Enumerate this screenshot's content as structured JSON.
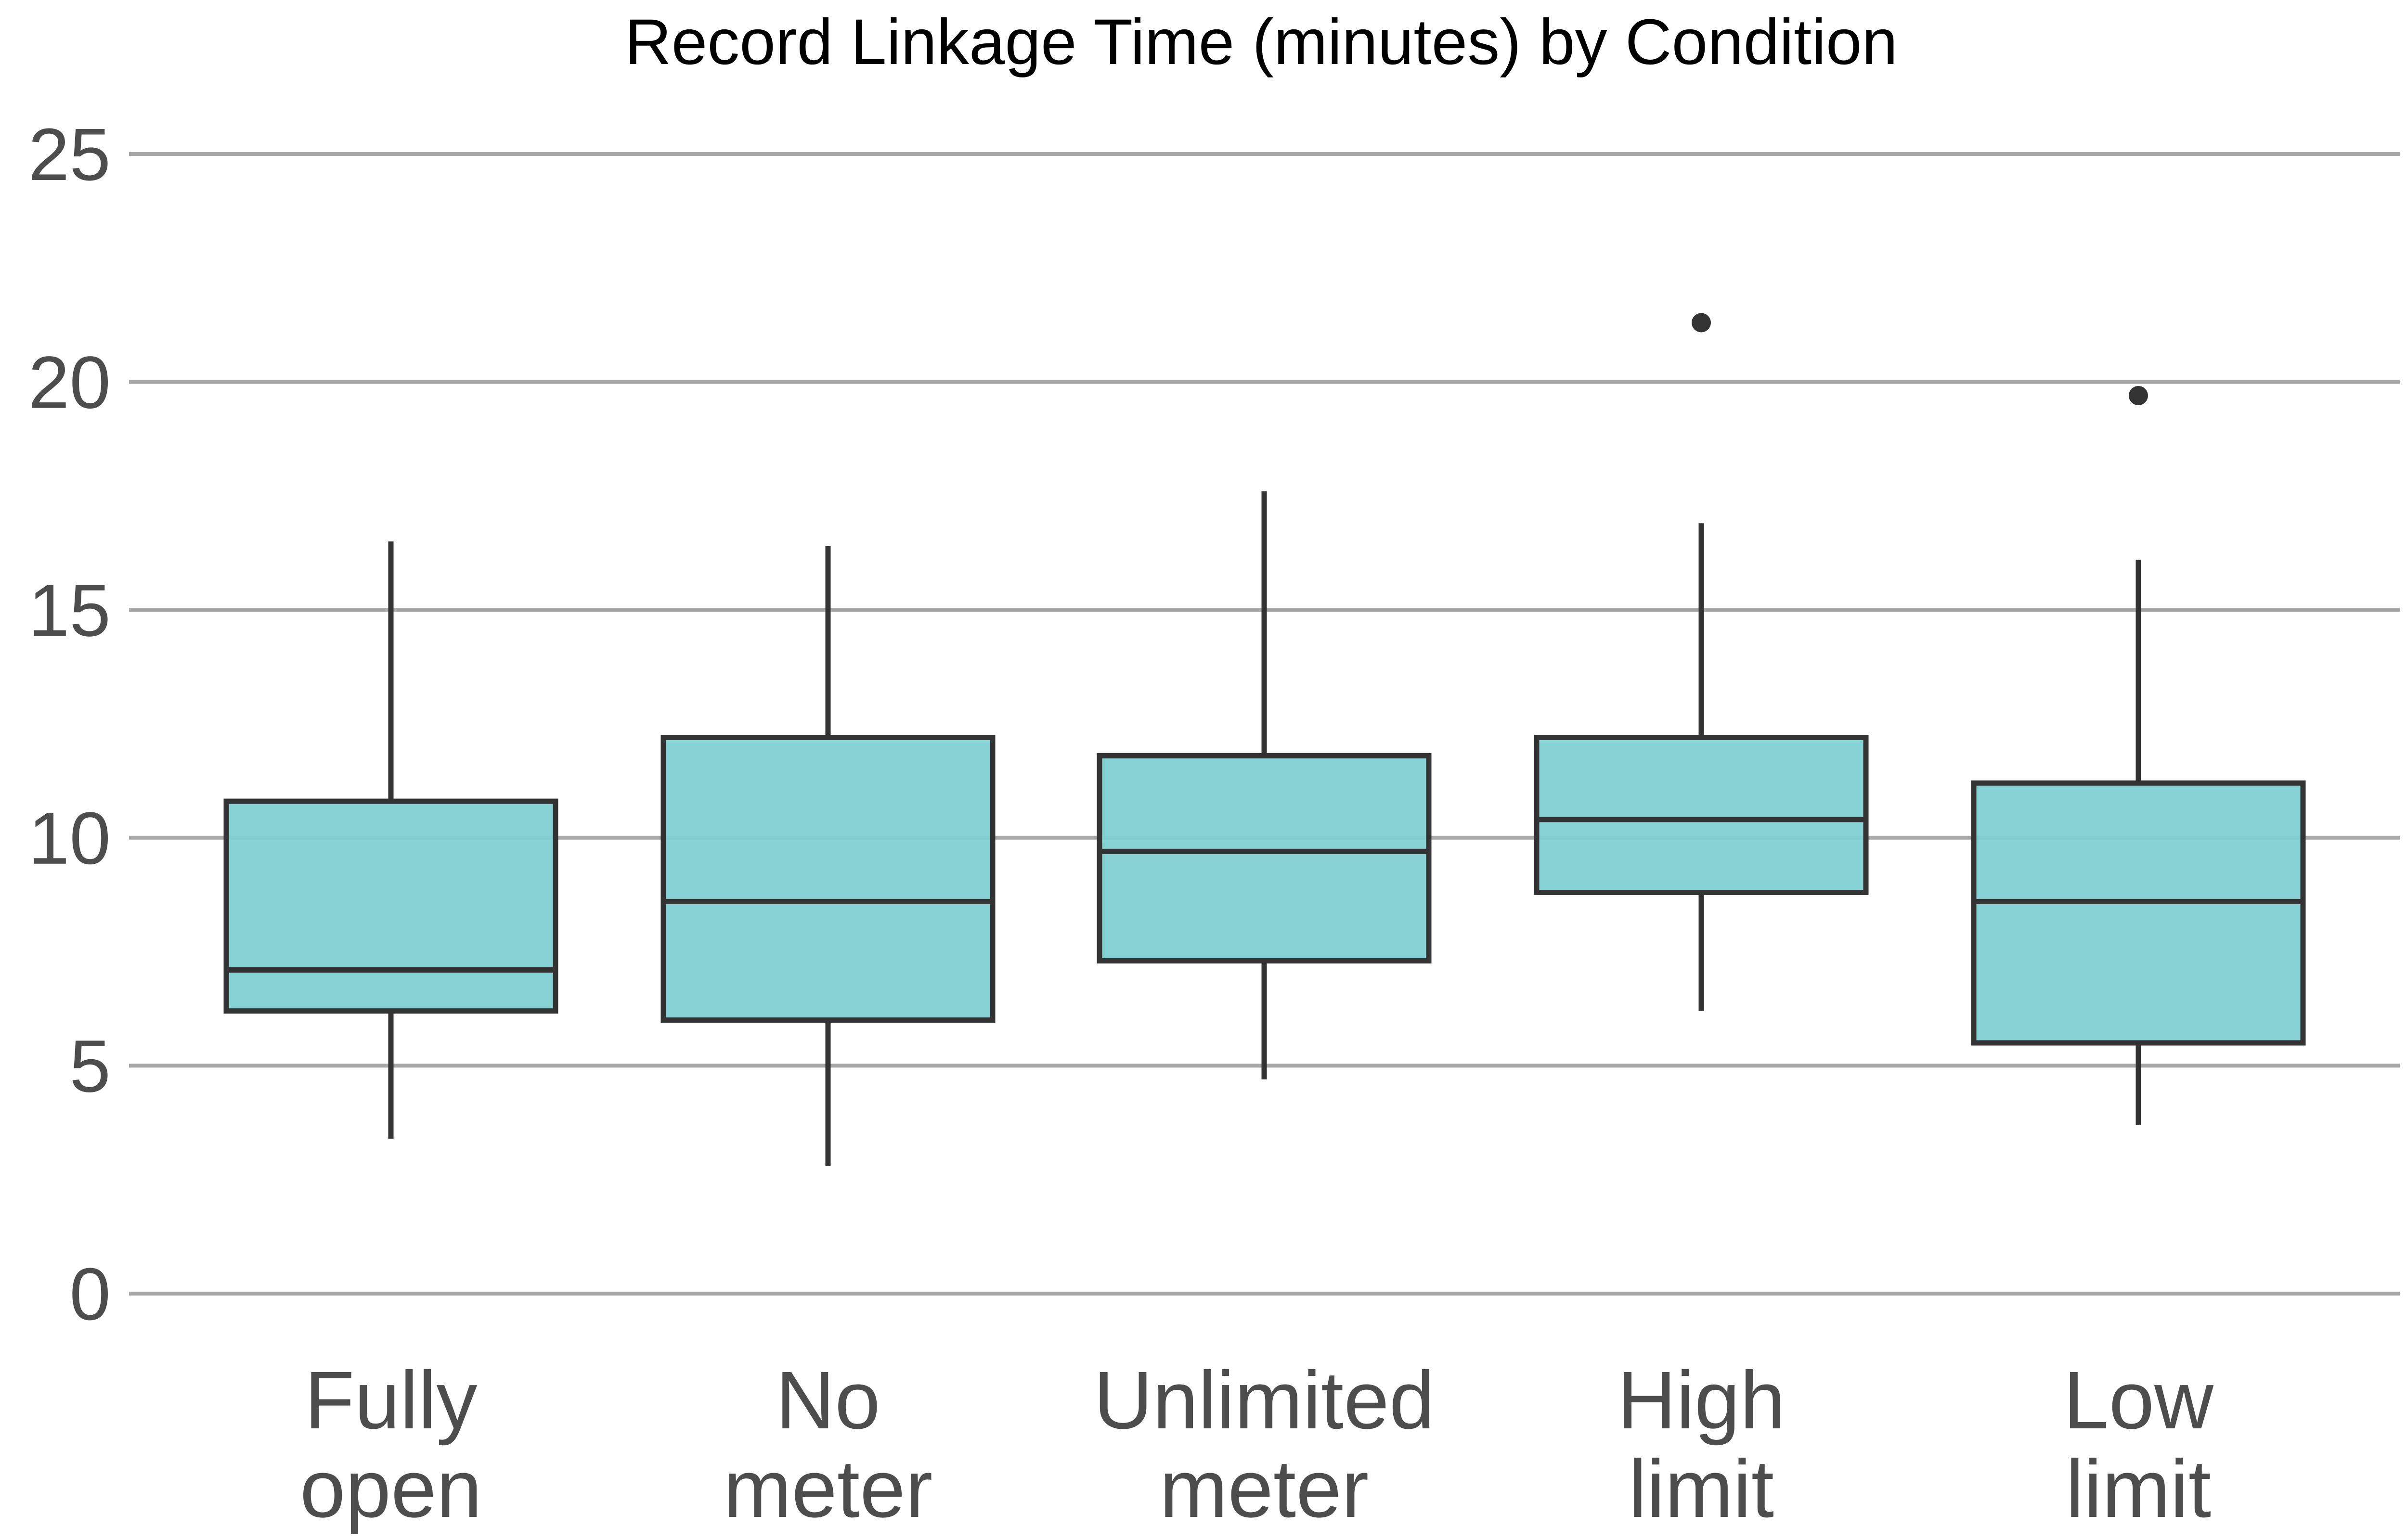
{
  "chart_data": {
    "type": "boxplot",
    "title": "Record Linkage Time (minutes) by Condition",
    "xlabel": "",
    "ylabel": "",
    "ylim": [
      0,
      25
    ],
    "yticks": [
      0,
      5,
      10,
      15,
      20,
      25
    ],
    "grid": true,
    "legend": "none",
    "fill_color": "#7dcfd1",
    "stroke_color": "#333333",
    "categories": [
      [
        "Fully",
        "open"
      ],
      [
        "No",
        "meter"
      ],
      [
        "Unlimited",
        "meter"
      ],
      [
        "High",
        "limit"
      ],
      [
        "Low",
        "limit"
      ]
    ],
    "boxes": [
      {
        "whisker_low": 3.4,
        "q1": 6.2,
        "median": 7.1,
        "q3": 10.8,
        "whisker_high": 16.5,
        "outliers": []
      },
      {
        "whisker_low": 2.8,
        "q1": 6.0,
        "median": 8.6,
        "q3": 12.2,
        "whisker_high": 16.4,
        "outliers": []
      },
      {
        "whisker_low": 4.7,
        "q1": 7.3,
        "median": 9.7,
        "q3": 11.8,
        "whisker_high": 17.6,
        "outliers": []
      },
      {
        "whisker_low": 6.2,
        "q1": 8.8,
        "median": 10.4,
        "q3": 12.2,
        "whisker_high": 16.9,
        "outliers": [
          21.3
        ]
      },
      {
        "whisker_low": 3.7,
        "q1": 5.5,
        "median": 8.6,
        "q3": 11.2,
        "whisker_high": 16.1,
        "outliers": [
          19.7
        ]
      }
    ]
  }
}
